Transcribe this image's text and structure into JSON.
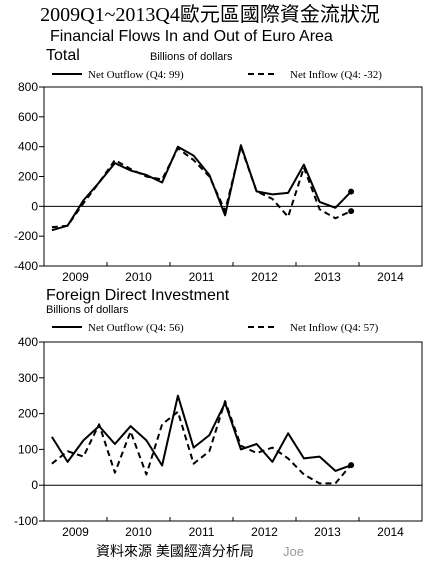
{
  "header": {
    "title": "2009Q1~2013Q4歐元區國際資金流狀況",
    "subtitle": "Financial Flows In and Out of Euro Area"
  },
  "footer": {
    "source": "資料來源 美國經濟分析局",
    "credit": "Joe"
  },
  "chart_data": [
    {
      "type": "line",
      "title": "Total",
      "unit_label": "Billions of dollars",
      "ylim": [
        -400,
        800
      ],
      "yticks": [
        -400,
        -200,
        0,
        200,
        400,
        600,
        800
      ],
      "xlim": [
        2008.5,
        2014.5
      ],
      "xticks": [
        "2009",
        "2010",
        "2011",
        "2012",
        "2013",
        "2014"
      ],
      "grid": false,
      "legend_position": "top",
      "x": [
        "2009Q1",
        "2009Q2",
        "2009Q3",
        "2009Q4",
        "2010Q1",
        "2010Q2",
        "2010Q3",
        "2010Q4",
        "2011Q1",
        "2011Q2",
        "2011Q3",
        "2011Q4",
        "2012Q1",
        "2012Q2",
        "2012Q3",
        "2012Q4",
        "2013Q1",
        "2013Q2",
        "2013Q3",
        "2013Q4"
      ],
      "series": [
        {
          "name": "Net Outflow (Q4: 99)",
          "style": "solid",
          "color": "#000000",
          "values": [
            -160,
            -130,
            40,
            160,
            290,
            240,
            210,
            160,
            400,
            340,
            210,
            -60,
            410,
            100,
            80,
            90,
            280,
            30,
            -10,
            99
          ]
        },
        {
          "name": "Net Inflow (Q4: -32)",
          "style": "dashed",
          "color": "#000000",
          "values": [
            -140,
            -130,
            20,
            160,
            310,
            250,
            200,
            180,
            390,
            310,
            200,
            -30,
            400,
            100,
            50,
            -70,
            260,
            -20,
            -80,
            -32
          ]
        }
      ]
    },
    {
      "type": "line",
      "title": "Foreign Direct Investment",
      "unit_label": "Billions of dollars",
      "ylim": [
        -100,
        400
      ],
      "yticks": [
        -100,
        0,
        100,
        200,
        300,
        400
      ],
      "xlim": [
        2008.5,
        2014.5
      ],
      "xticks": [
        "2009",
        "2010",
        "2011",
        "2012",
        "2013",
        "2014"
      ],
      "grid": false,
      "legend_position": "top",
      "x": [
        "2009Q1",
        "2009Q2",
        "2009Q3",
        "2009Q4",
        "2010Q1",
        "2010Q2",
        "2010Q3",
        "2010Q4",
        "2011Q1",
        "2011Q2",
        "2011Q3",
        "2011Q4",
        "2012Q1",
        "2012Q2",
        "2012Q3",
        "2012Q4",
        "2013Q1",
        "2013Q2",
        "2013Q3",
        "2013Q4"
      ],
      "series": [
        {
          "name": "Net Outflow (Q4: 56)",
          "style": "solid",
          "color": "#000000",
          "values": [
            135,
            65,
            125,
            165,
            115,
            165,
            125,
            55,
            250,
            105,
            140,
            230,
            100,
            115,
            65,
            145,
            75,
            80,
            40,
            56
          ]
        },
        {
          "name": "Net Inflow (Q4: 57)",
          "style": "dashed",
          "color": "#000000",
          "values": [
            60,
            95,
            80,
            170,
            35,
            150,
            30,
            170,
            205,
            60,
            95,
            235,
            110,
            90,
            105,
            75,
            30,
            5,
            5,
            57
          ]
        }
      ]
    }
  ]
}
